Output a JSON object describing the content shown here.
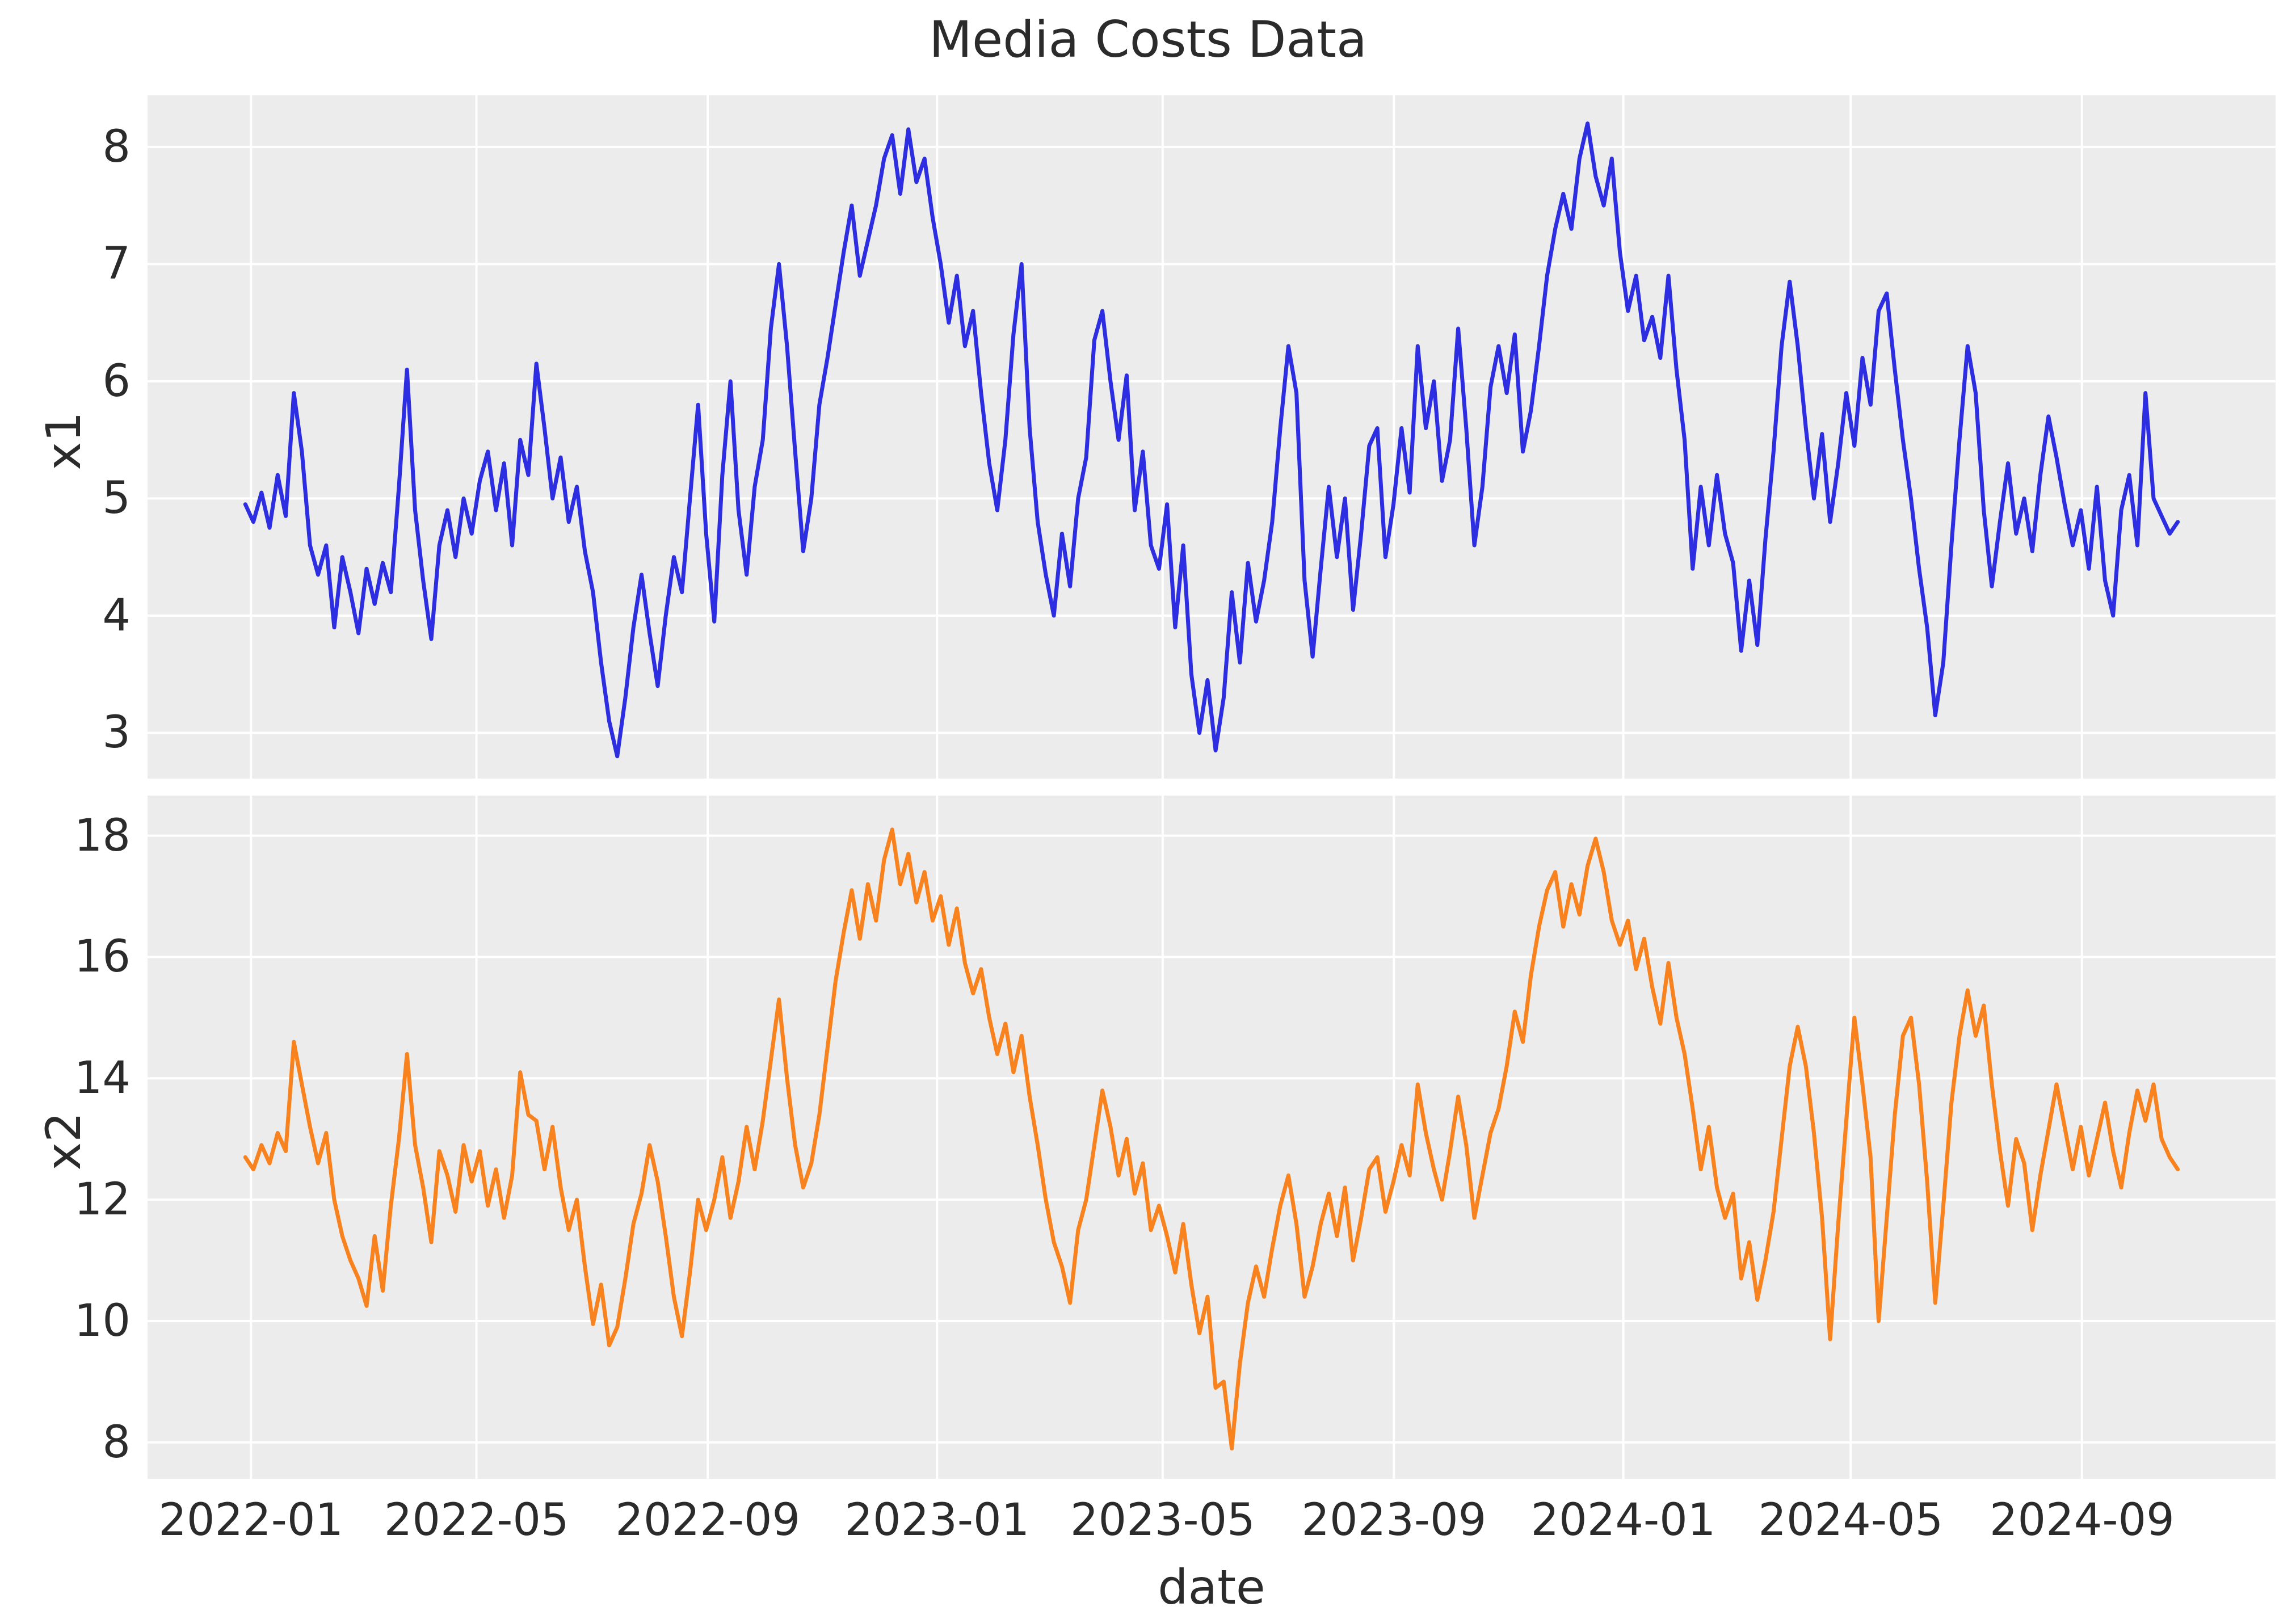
{
  "figure": {
    "background_color": "#ffffff",
    "plot_background_color": "#ececec",
    "grid_color": "#ffffff",
    "text_color": "#2b2b2b"
  },
  "chart_data": {
    "type": "line",
    "title": "Media Costs Data",
    "xlabel": "date",
    "legend_position": "none",
    "grid": true,
    "x_start_date": "2021-12-29",
    "x_end_date": "2024-10-22",
    "x_span_days": 1028,
    "xlim_days": [
      -52,
      1080
    ],
    "x_ticks": [
      {
        "label": "2022-01",
        "day": 3
      },
      {
        "label": "2022-05",
        "day": 123
      },
      {
        "label": "2022-09",
        "day": 246
      },
      {
        "label": "2023-01",
        "day": 368
      },
      {
        "label": "2023-05",
        "day": 488
      },
      {
        "label": "2023-09",
        "day": 611
      },
      {
        "label": "2024-01",
        "day": 733
      },
      {
        "label": "2024-05",
        "day": 854
      },
      {
        "label": "2024-09",
        "day": 977
      }
    ],
    "subplots": [
      {
        "name": "x1",
        "ylabel": "x1",
        "line_color": "#2d2de1",
        "ylim": [
          2.61,
          8.44
        ],
        "yticks": [
          3,
          4,
          5,
          6,
          7,
          8
        ],
        "values": [
          4.95,
          4.8,
          5.05,
          4.75,
          5.2,
          4.85,
          5.9,
          5.4,
          4.6,
          4.35,
          4.6,
          3.9,
          4.5,
          4.2,
          3.85,
          4.4,
          4.1,
          4.45,
          4.2,
          5.1,
          6.1,
          4.9,
          4.3,
          3.8,
          4.6,
          4.9,
          4.5,
          5.0,
          4.7,
          5.15,
          5.4,
          4.9,
          5.3,
          4.6,
          5.5,
          5.2,
          6.15,
          5.6,
          5.0,
          5.35,
          4.8,
          5.1,
          4.55,
          4.2,
          3.6,
          3.1,
          2.8,
          3.3,
          3.9,
          4.35,
          3.85,
          3.4,
          4.0,
          4.5,
          4.2,
          5.0,
          5.8,
          4.7,
          3.95,
          5.2,
          6.0,
          4.9,
          4.35,
          5.1,
          5.5,
          6.45,
          7.0,
          6.3,
          5.4,
          4.55,
          5.0,
          5.8,
          6.2,
          6.65,
          7.1,
          7.5,
          6.9,
          7.2,
          7.5,
          7.9,
          8.1,
          7.6,
          8.15,
          7.7,
          7.9,
          7.4,
          7.0,
          6.5,
          6.9,
          6.3,
          6.6,
          5.9,
          5.3,
          4.9,
          5.5,
          6.4,
          7.0,
          5.6,
          4.8,
          4.35,
          4.0,
          4.7,
          4.25,
          5.0,
          5.35,
          6.35,
          6.6,
          6.0,
          5.5,
          6.05,
          4.9,
          5.4,
          4.6,
          4.4,
          4.95,
          3.9,
          4.6,
          3.5,
          3.0,
          3.45,
          2.85,
          3.3,
          4.2,
          3.6,
          4.45,
          3.95,
          4.3,
          4.8,
          5.6,
          6.3,
          5.9,
          4.3,
          3.65,
          4.4,
          5.1,
          4.5,
          5.0,
          4.05,
          4.7,
          5.45,
          5.6,
          4.5,
          4.95,
          5.6,
          5.05,
          6.3,
          5.6,
          6.0,
          5.15,
          5.5,
          6.45,
          5.6,
          4.6,
          5.1,
          5.95,
          6.3,
          5.9,
          6.4,
          5.4,
          5.75,
          6.3,
          6.9,
          7.3,
          7.6,
          7.3,
          7.9,
          8.2,
          7.75,
          7.5,
          7.9,
          7.1,
          6.6,
          6.9,
          6.35,
          6.55,
          6.2,
          6.9,
          6.1,
          5.5,
          4.4,
          5.1,
          4.6,
          5.2,
          4.7,
          4.45,
          3.7,
          4.3,
          3.75,
          4.65,
          5.4,
          6.3,
          6.85,
          6.3,
          5.6,
          5.0,
          5.55,
          4.8,
          5.3,
          5.9,
          5.45,
          6.2,
          5.8,
          6.6,
          6.75,
          6.1,
          5.5,
          5.0,
          4.4,
          3.9,
          3.15,
          3.6,
          4.6,
          5.5,
          6.3,
          5.9,
          4.9,
          4.25,
          4.8,
          5.3,
          4.7,
          5.0,
          4.55,
          5.2,
          5.7,
          5.35,
          4.95,
          4.6,
          4.9,
          4.4,
          5.1,
          4.3,
          4.0,
          4.9,
          5.2,
          4.6,
          5.9,
          5.0,
          4.85,
          4.7,
          4.8
        ]
      },
      {
        "name": "x2",
        "ylabel": "x2",
        "line_color": "#f8821e",
        "ylim": [
          7.4,
          18.66
        ],
        "yticks": [
          8,
          10,
          12,
          14,
          16,
          18
        ],
        "values": [
          12.7,
          12.5,
          12.9,
          12.6,
          13.1,
          12.8,
          14.6,
          13.9,
          13.2,
          12.6,
          13.1,
          12.0,
          11.4,
          11.0,
          10.7,
          10.25,
          11.4,
          10.5,
          11.9,
          13.0,
          14.4,
          12.9,
          12.2,
          11.3,
          12.8,
          12.4,
          11.8,
          12.9,
          12.3,
          12.8,
          11.9,
          12.5,
          11.7,
          12.4,
          14.1,
          13.4,
          13.3,
          12.5,
          13.2,
          12.2,
          11.5,
          12.0,
          10.9,
          9.95,
          10.6,
          9.6,
          9.9,
          10.7,
          11.6,
          12.1,
          12.9,
          12.3,
          11.4,
          10.4,
          9.75,
          10.8,
          12.0,
          11.5,
          12.0,
          12.7,
          11.7,
          12.3,
          13.2,
          12.5,
          13.3,
          14.3,
          15.3,
          14.0,
          12.9,
          12.2,
          12.6,
          13.4,
          14.5,
          15.6,
          16.4,
          17.1,
          16.3,
          17.2,
          16.6,
          17.6,
          18.1,
          17.2,
          17.7,
          16.9,
          17.4,
          16.6,
          17.0,
          16.2,
          16.8,
          15.9,
          15.4,
          15.8,
          15.0,
          14.4,
          14.9,
          14.1,
          14.7,
          13.7,
          12.9,
          12.0,
          11.3,
          10.9,
          10.3,
          11.5,
          12.0,
          12.9,
          13.8,
          13.2,
          12.4,
          13.0,
          12.1,
          12.6,
          11.5,
          11.9,
          11.4,
          10.8,
          11.6,
          10.6,
          9.8,
          10.4,
          8.9,
          9.0,
          7.9,
          9.3,
          10.3,
          10.9,
          10.4,
          11.2,
          11.9,
          12.4,
          11.6,
          10.4,
          10.9,
          11.6,
          12.1,
          11.4,
          12.2,
          11.0,
          11.7,
          12.5,
          12.7,
          11.8,
          12.3,
          12.9,
          12.4,
          13.9,
          13.1,
          12.5,
          12.0,
          12.8,
          13.7,
          12.9,
          11.7,
          12.4,
          13.1,
          13.5,
          14.2,
          15.1,
          14.6,
          15.7,
          16.5,
          17.1,
          17.4,
          16.5,
          17.2,
          16.7,
          17.5,
          17.95,
          17.4,
          16.6,
          16.2,
          16.6,
          15.8,
          16.3,
          15.5,
          14.9,
          15.9,
          15.0,
          14.4,
          13.5,
          12.5,
          13.2,
          12.2,
          11.7,
          12.1,
          10.7,
          11.3,
          10.35,
          11.0,
          11.8,
          13.0,
          14.2,
          14.85,
          14.2,
          13.1,
          11.7,
          9.7,
          11.6,
          13.3,
          15.0,
          13.9,
          12.7,
          10.0,
          11.7,
          13.4,
          14.7,
          15.0,
          13.9,
          12.3,
          10.3,
          11.9,
          13.6,
          14.7,
          15.45,
          14.7,
          15.2,
          13.9,
          12.8,
          11.9,
          13.0,
          12.6,
          11.5,
          12.4,
          13.15,
          13.9,
          13.2,
          12.5,
          13.2,
          12.4,
          13.0,
          13.6,
          12.8,
          12.2,
          13.1,
          13.8,
          13.3,
          13.9,
          13.0,
          12.7,
          12.5
        ]
      }
    ]
  }
}
